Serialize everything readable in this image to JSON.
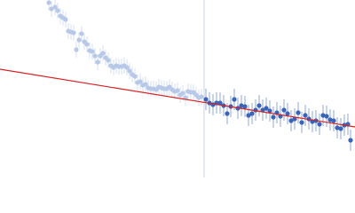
{
  "chart_data": {
    "type": "scatter",
    "xlim": [
      0,
      400
    ],
    "ylim": [
      0,
      200
    ],
    "vline": 230,
    "vline_color": "#c8d4e8",
    "series": [
      {
        "mode": "markers",
        "color": "#b8c8e8",
        "error": 9,
        "x": [
          55,
          58,
          62,
          65,
          68,
          71,
          74,
          77,
          80,
          83,
          86,
          89,
          92,
          95,
          98,
          101,
          104,
          107,
          110,
          113,
          116,
          119,
          122,
          125,
          128,
          131,
          134,
          137,
          140,
          143,
          146,
          149,
          152,
          155,
          158,
          161,
          164,
          167,
          170,
          173,
          176,
          179,
          182,
          185,
          188,
          191,
          194,
          197,
          200,
          203,
          206,
          209,
          212,
          215,
          218,
          221,
          224,
          227
        ],
        "values": [
          197,
          190,
          192,
          188,
          182,
          180,
          178,
          165,
          164,
          163,
          144,
          155,
          162,
          153,
          150,
          143,
          142,
          137,
          130,
          137,
          140,
          135,
          132,
          126,
          124,
          126,
          125,
          125,
          126,
          124,
          120,
          116,
          114,
          107,
          108,
          104,
          105,
          101,
          100,
          100,
          99,
          102,
          101,
          100,
          100,
          102,
          99,
          97,
          98,
          93,
          95,
          90,
          97,
          96,
          96,
          93,
          90,
          91
        ]
      },
      {
        "mode": "markers",
        "color": "#3a64b8",
        "error": 12,
        "x": [
          232,
          236,
          240,
          244,
          248,
          252,
          256,
          260,
          264,
          268,
          272,
          276,
          280,
          284,
          288,
          292,
          296,
          300,
          304,
          308,
          312,
          316,
          320,
          324,
          328,
          332,
          336,
          340,
          344,
          348,
          352,
          356,
          360,
          364,
          368,
          372,
          376,
          380,
          384,
          388,
          392,
          395
        ],
        "values": [
          88,
          84,
          82,
          84,
          84,
          81,
          72,
          80,
          88,
          78,
          81,
          80,
          70,
          72,
          76,
          81,
          76,
          78,
          75,
          68,
          73,
          69,
          76,
          72,
          64,
          66,
          73,
          62,
          70,
          66,
          63,
          64,
          60,
          70,
          69,
          65,
          64,
          56,
          55,
          59,
          60,
          42
        ]
      },
      {
        "mode": "line",
        "color": "#d62020",
        "x": [
          0,
          400
        ],
        "values": [
          122,
          57
        ]
      }
    ]
  }
}
